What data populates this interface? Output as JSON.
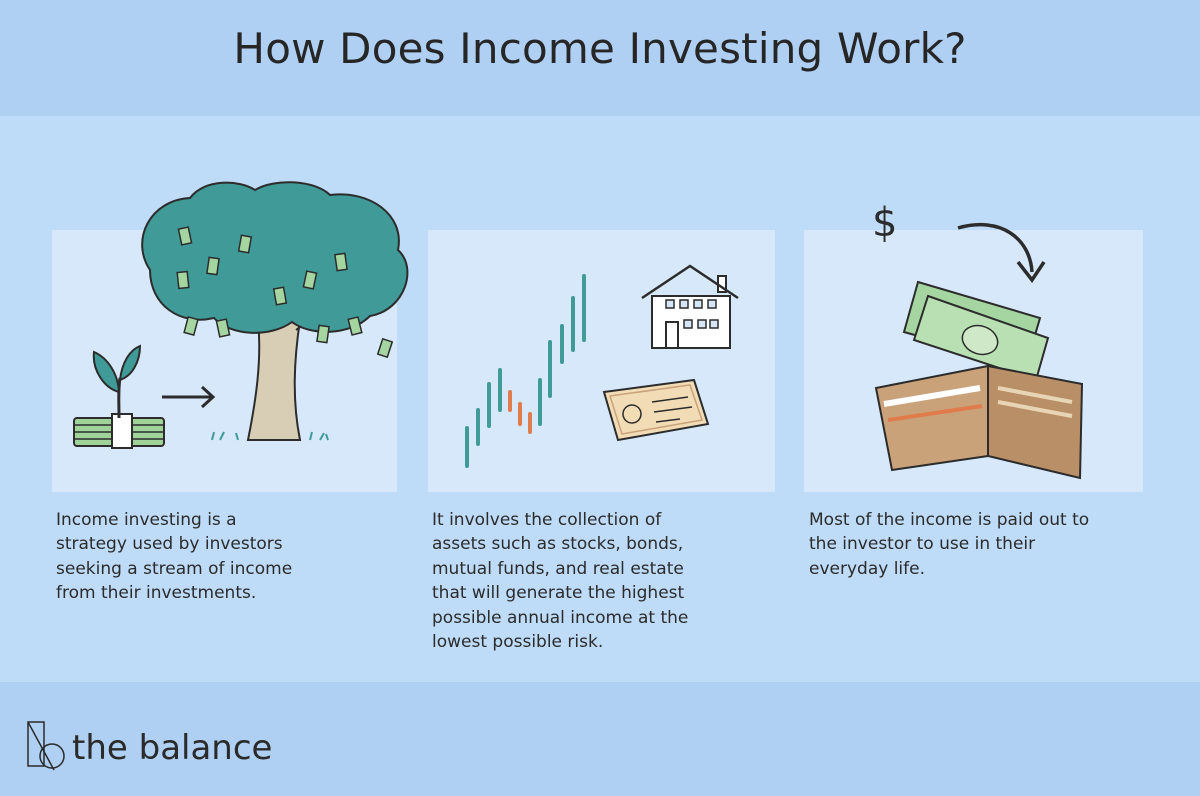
{
  "title": "How Does Income Investing Work?",
  "steps": [
    {
      "caption": "Income investing is a\nstrategy used by investors\nseeking a stream of income\nfrom their investments.",
      "icons": [
        "money-stack-icon",
        "sprout-icon",
        "arrow-right-icon",
        "money-tree-icon"
      ]
    },
    {
      "caption": "It involves the collection of\nassets such as stocks, bonds,\nmutual funds, and real estate\nthat will generate the highest\npossible annual income at the\nlowest possible risk.",
      "icons": [
        "stock-candlestick-icon",
        "house-icon",
        "bond-certificate-icon"
      ]
    },
    {
      "caption": "Most of the income is paid out to\nthe investor to use in their\neveryday life.",
      "icons": [
        "dollar-sign-icon",
        "curved-arrow-icon",
        "cash-bills-icon",
        "wallet-icon"
      ]
    }
  ],
  "brand": {
    "name": "the balance"
  },
  "colors": {
    "header": "#afd0f3",
    "band": "#bedbf7",
    "panel": "#d6e8fa",
    "tree": "#3f9a98",
    "money": "#a5d6a1",
    "wallet": "#c9a27a",
    "text": "#262626"
  }
}
